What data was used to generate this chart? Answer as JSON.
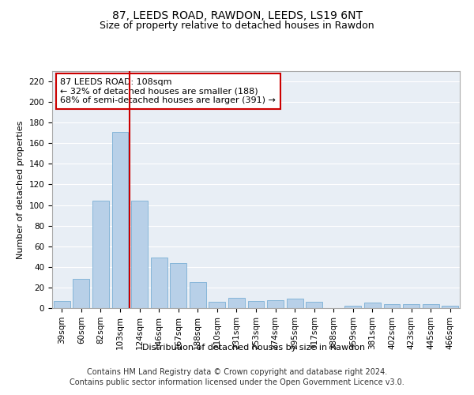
{
  "title1": "87, LEEDS ROAD, RAWDON, LEEDS, LS19 6NT",
  "title2": "Size of property relative to detached houses in Rawdon",
  "xlabel": "Distribution of detached houses by size in Rawdon",
  "ylabel": "Number of detached properties",
  "categories": [
    "39sqm",
    "60sqm",
    "82sqm",
    "103sqm",
    "124sqm",
    "146sqm",
    "167sqm",
    "188sqm",
    "210sqm",
    "231sqm",
    "253sqm",
    "274sqm",
    "295sqm",
    "317sqm",
    "338sqm",
    "359sqm",
    "381sqm",
    "402sqm",
    "423sqm",
    "445sqm",
    "466sqm"
  ],
  "values": [
    7,
    28,
    104,
    171,
    104,
    49,
    44,
    25,
    6,
    10,
    7,
    8,
    9,
    6,
    0,
    2,
    5,
    4,
    4,
    4,
    2
  ],
  "bar_color": "#b8d0e8",
  "bar_edge_color": "#7aafd4",
  "vline_x": 3.5,
  "vline_color": "#cc0000",
  "annotation_text": "87 LEEDS ROAD: 108sqm\n← 32% of detached houses are smaller (188)\n68% of semi-detached houses are larger (391) →",
  "annotation_box_color": "#ffffff",
  "annotation_box_edge": "#cc0000",
  "ylim": [
    0,
    230
  ],
  "yticks": [
    0,
    20,
    40,
    60,
    80,
    100,
    120,
    140,
    160,
    180,
    200,
    220
  ],
  "footer1": "Contains HM Land Registry data © Crown copyright and database right 2024.",
  "footer2": "Contains public sector information licensed under the Open Government Licence v3.0.",
  "bg_color": "#e8eef5",
  "grid_color": "#ffffff",
  "fig_bg_color": "#ffffff",
  "title1_fontsize": 10,
  "title2_fontsize": 9,
  "axis_label_fontsize": 8,
  "tick_fontsize": 7.5,
  "annotation_fontsize": 8,
  "footer_fontsize": 7
}
